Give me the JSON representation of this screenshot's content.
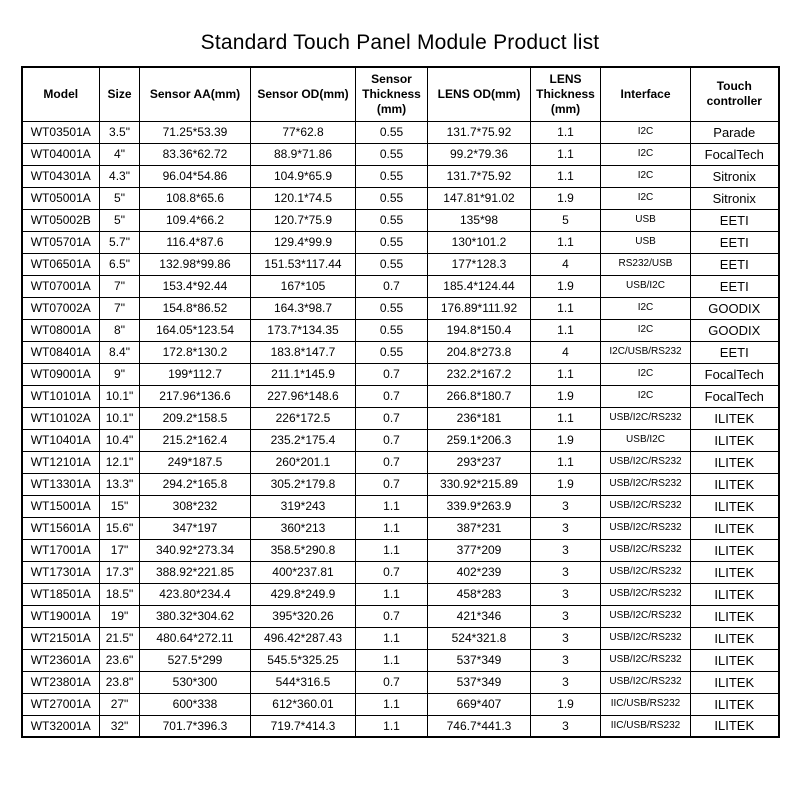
{
  "title": "Standard Touch Panel Module Product list",
  "colors": {
    "background": "#ffffff",
    "text": "#000000",
    "border": "#000000"
  },
  "table": {
    "columns": [
      {
        "key": "model",
        "label": "Model"
      },
      {
        "key": "size",
        "label": "Size"
      },
      {
        "key": "sensor_aa",
        "label": "Sensor AA(mm)"
      },
      {
        "key": "sensor_od",
        "label": "Sensor OD(mm)"
      },
      {
        "key": "sensor_thickness",
        "label": "Sensor\nThickness\n(mm)"
      },
      {
        "key": "lens_od",
        "label": "LENS OD(mm)"
      },
      {
        "key": "lens_thickness",
        "label": "LENS\nThickness\n(mm)"
      },
      {
        "key": "interface",
        "label": "Interface"
      },
      {
        "key": "touch_controller",
        "label": "Touch\ncontroller"
      }
    ],
    "rows": [
      [
        "WT03501A",
        "3.5\"",
        "71.25*53.39",
        "77*62.8",
        "0.55",
        "131.7*75.92",
        "1.1",
        "I2C",
        "Parade"
      ],
      [
        "WT04001A",
        "4\"",
        "83.36*62.72",
        "88.9*71.86",
        "0.55",
        "99.2*79.36",
        "1.1",
        "I2C",
        "FocalTech"
      ],
      [
        "WT04301A",
        "4.3\"",
        "96.04*54.86",
        "104.9*65.9",
        "0.55",
        "131.7*75.92",
        "1.1",
        "I2C",
        "Sitronix"
      ],
      [
        "WT05001A",
        "5\"",
        "108.8*65.6",
        "120.1*74.5",
        "0.55",
        "147.81*91.02",
        "1.9",
        "I2C",
        "Sitronix"
      ],
      [
        "WT05002B",
        "5\"",
        "109.4*66.2",
        "120.7*75.9",
        "0.55",
        "135*98",
        "5",
        "USB",
        "EETI"
      ],
      [
        "WT05701A",
        "5.7\"",
        "116.4*87.6",
        "129.4*99.9",
        "0.55",
        "130*101.2",
        "1.1",
        "USB",
        "EETI"
      ],
      [
        "WT06501A",
        "6.5\"",
        "132.98*99.86",
        "151.53*117.44",
        "0.55",
        "177*128.3",
        "4",
        "RS232/USB",
        "EETI"
      ],
      [
        "WT07001A",
        "7\"",
        "153.4*92.44",
        "167*105",
        "0.7",
        "185.4*124.44",
        "1.9",
        "USB/I2C",
        "EETI"
      ],
      [
        "WT07002A",
        "7\"",
        "154.8*86.52",
        "164.3*98.7",
        "0.55",
        "176.89*111.92",
        "1.1",
        "I2C",
        "GOODIX"
      ],
      [
        "WT08001A",
        "8\"",
        "164.05*123.54",
        "173.7*134.35",
        "0.55",
        "194.8*150.4",
        "1.1",
        "I2C",
        "GOODIX"
      ],
      [
        "WT08401A",
        "8.4\"",
        "172.8*130.2",
        "183.8*147.7",
        "0.55",
        "204.8*273.8",
        "4",
        "I2C/USB/RS232",
        "EETI"
      ],
      [
        "WT09001A",
        "9\"",
        "199*112.7",
        "211.1*145.9",
        "0.7",
        "232.2*167.2",
        "1.1",
        "I2C",
        "FocalTech"
      ],
      [
        "WT10101A",
        "10.1\"",
        "217.96*136.6",
        "227.96*148.6",
        "0.7",
        "266.8*180.7",
        "1.9",
        "I2C",
        "FocalTech"
      ],
      [
        "WT10102A",
        "10.1\"",
        "209.2*158.5",
        "226*172.5",
        "0.7",
        "236*181",
        "1.1",
        "USB/I2C/RS232",
        "ILITEK"
      ],
      [
        "WT10401A",
        "10.4\"",
        "215.2*162.4",
        "235.2*175.4",
        "0.7",
        "259.1*206.3",
        "1.9",
        "USB/I2C",
        "ILITEK"
      ],
      [
        "WT12101A",
        "12.1\"",
        "249*187.5",
        "260*201.1",
        "0.7",
        "293*237",
        "1.1",
        "USB/I2C/RS232",
        "ILITEK"
      ],
      [
        "WT13301A",
        "13.3\"",
        "294.2*165.8",
        "305.2*179.8",
        "0.7",
        "330.92*215.89",
        "1.9",
        "USB/I2C/RS232",
        "ILITEK"
      ],
      [
        "WT15001A",
        "15\"",
        "308*232",
        "319*243",
        "1.1",
        "339.9*263.9",
        "3",
        "USB/I2C/RS232",
        "ILITEK"
      ],
      [
        "WT15601A",
        "15.6\"",
        "347*197",
        "360*213",
        "1.1",
        "387*231",
        "3",
        "USB/I2C/RS232",
        "ILITEK"
      ],
      [
        "WT17001A",
        "17\"",
        "340.92*273.34",
        "358.5*290.8",
        "1.1",
        "377*209",
        "3",
        "USB/I2C/RS232",
        "ILITEK"
      ],
      [
        "WT17301A",
        "17.3\"",
        "388.92*221.85",
        "400*237.81",
        "0.7",
        "402*239",
        "3",
        "USB/I2C/RS232",
        "ILITEK"
      ],
      [
        "WT18501A",
        "18.5\"",
        "423.80*234.4",
        "429.8*249.9",
        "1.1",
        "458*283",
        "3",
        "USB/I2C/RS232",
        "ILITEK"
      ],
      [
        "WT19001A",
        "19\"",
        "380.32*304.62",
        "395*320.26",
        "0.7",
        "421*346",
        "3",
        "USB/I2C/RS232",
        "ILITEK"
      ],
      [
        "WT21501A",
        "21.5\"",
        "480.64*272.11",
        "496.42*287.43",
        "1.1",
        "524*321.8",
        "3",
        "USB/I2C/RS232",
        "ILITEK"
      ],
      [
        "WT23601A",
        "23.6\"",
        "527.5*299",
        "545.5*325.25",
        "1.1",
        "537*349",
        "3",
        "USB/I2C/RS232",
        "ILITEK"
      ],
      [
        "WT23801A",
        "23.8\"",
        "530*300",
        "544*316.5",
        "0.7",
        "537*349",
        "3",
        "USB/I2C/RS232",
        "ILITEK"
      ],
      [
        "WT27001A",
        "27\"",
        "600*338",
        "612*360.01",
        "1.1",
        "669*407",
        "1.9",
        "IIC/USB/RS232",
        "ILITEK"
      ],
      [
        "WT32001A",
        "32\"",
        "701.7*396.3",
        "719.7*414.3",
        "1.1",
        "746.7*441.3",
        "3",
        "IIC/USB/RS232",
        "ILITEK"
      ]
    ]
  }
}
